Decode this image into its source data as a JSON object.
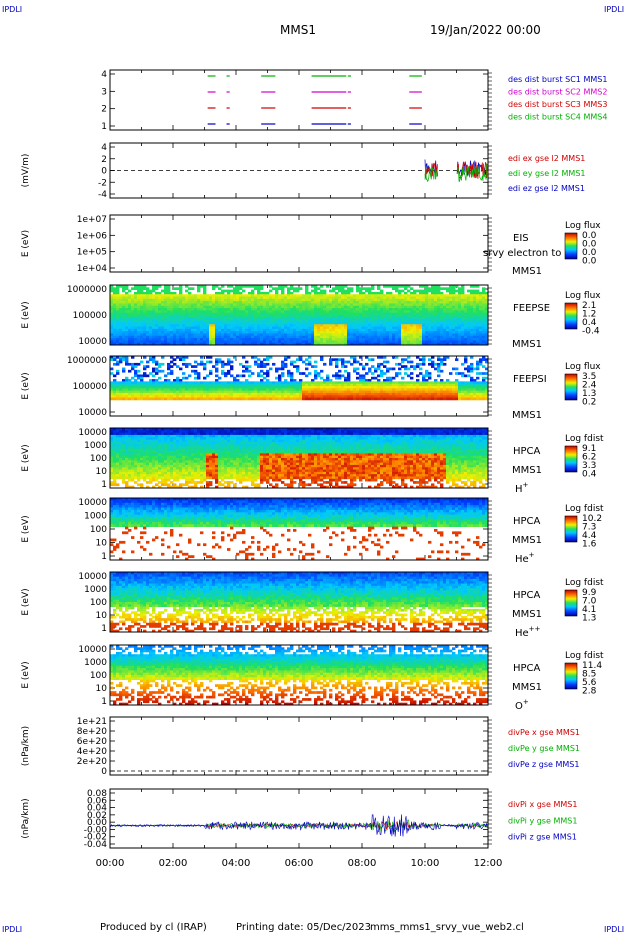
{
  "corner_tag": "IPDLI",
  "header": {
    "spacecraft": "MMS1",
    "date": "19/Jan/2022 00:00"
  },
  "footer": {
    "producer": "Produced by cl (IRAP)",
    "printing_date": "Printing date: 05/Dec/2023",
    "filename": "mms_mms1_srvy_vue_web2.cl"
  },
  "colors": {
    "red": "#d00000",
    "green": "#00b000",
    "blue": "#0000c0",
    "magenta": "#d000d0"
  },
  "chart_data": [
    {
      "type": "scatter",
      "ylim": [
        0.5,
        4.5
      ],
      "yticks": [
        "4",
        "3",
        "2",
        "1"
      ],
      "legend": [
        {
          "text": "des dist burst SC1 MMS1",
          "color": "#0000c0"
        },
        {
          "text": "des dist burst SC2 MMS2",
          "color": "#d000d0"
        },
        {
          "text": "des dist burst SC3 MMS3",
          "color": "#d00000"
        },
        {
          "text": "des dist burst SC4 MMS4",
          "color": "#00b000"
        }
      ]
    },
    {
      "type": "line",
      "ylabel": "(mV/m)",
      "ylim": [
        -4,
        4
      ],
      "yticks": [
        "4",
        "2",
        "0",
        "-2",
        "-4"
      ],
      "legend": [
        {
          "text": "edi ex gse l2 MMS1",
          "color": "#d00000"
        },
        {
          "text": "edi ey gse l2 MMS1",
          "color": "#00b000"
        },
        {
          "text": "edi ez gse l2 MMS1",
          "color": "#0000c0"
        }
      ]
    },
    {
      "type": "heatmap",
      "ylabel": "E (eV)",
      "yticks": [
        "1e+07",
        "1e+06",
        "1e+05",
        "1e+04"
      ],
      "labels": [
        "EIS",
        "MMS1"
      ],
      "overlay": "srvy electron to",
      "cbar_title": "Log flux",
      "cbar_ticks": [
        "0.0",
        "0.0",
        "0.0",
        "0.0"
      ]
    },
    {
      "type": "heatmap",
      "ylabel": "E (eV)",
      "yticks": [
        "1000000",
        "100000",
        "10000"
      ],
      "labels": [
        "FEEPSE",
        "MMS1"
      ],
      "cbar_title": "Log flux",
      "cbar_ticks": [
        "2.1",
        "1.2",
        "0.4",
        "-0.4"
      ]
    },
    {
      "type": "heatmap",
      "ylabel": "E (eV)",
      "yticks": [
        "1000000",
        "100000",
        "10000"
      ],
      "labels": [
        "FEEPSI",
        "MMS1"
      ],
      "cbar_title": "Log flux",
      "cbar_ticks": [
        "3.5",
        "2.4",
        "1.3",
        "0.2"
      ]
    },
    {
      "type": "heatmap",
      "ylabel": "E (eV)",
      "yticks": [
        "10000",
        "1000",
        "100",
        "10",
        "1"
      ],
      "labels": [
        "HPCA",
        "MMS1"
      ],
      "species": "H",
      "species_sup": "+",
      "cbar_title": "Log fdist",
      "cbar_ticks": [
        "9.1",
        "6.2",
        "3.3",
        "0.4"
      ]
    },
    {
      "type": "heatmap",
      "ylabel": "E (eV)",
      "yticks": [
        "10000",
        "1000",
        "100",
        "10",
        "1"
      ],
      "labels": [
        "HPCA",
        "MMS1"
      ],
      "species": "He",
      "species_sup": "+",
      "cbar_title": "Log fdist",
      "cbar_ticks": [
        "10.2",
        "7.3",
        "4.4",
        "1.6"
      ]
    },
    {
      "type": "heatmap",
      "ylabel": "E (eV)",
      "yticks": [
        "10000",
        "1000",
        "100",
        "10",
        "1"
      ],
      "labels": [
        "HPCA",
        "MMS1"
      ],
      "species": "He",
      "species_sup": "++",
      "cbar_title": "Log fdist",
      "cbar_ticks": [
        "9.9",
        "7.0",
        "4.1",
        "1.3"
      ]
    },
    {
      "type": "heatmap",
      "ylabel": "E (eV)",
      "yticks": [
        "10000",
        "1000",
        "100",
        "10",
        "1"
      ],
      "labels": [
        "HPCA",
        "MMS1"
      ],
      "species": "O",
      "species_sup": "+",
      "cbar_title": "Log fdist",
      "cbar_ticks": [
        "11.4",
        "8.5",
        "5.6",
        "2.8"
      ]
    },
    {
      "type": "line",
      "ylabel": "(nPa/km)",
      "ylim": [
        0,
        1e+21
      ],
      "yticks": [
        "1e+21",
        "8e+20",
        "6e+20",
        "4e+20",
        "2e+20",
        "0"
      ],
      "legend": [
        {
          "text": "divPe x gse MMS1",
          "color": "#d00000"
        },
        {
          "text": "divPe y gse MMS1",
          "color": "#00b000"
        },
        {
          "text": "divPe z gse MMS1",
          "color": "#0000c0"
        }
      ]
    },
    {
      "type": "line",
      "ylabel": "(nPa/km)",
      "ylim": [
        -0.04,
        0.08
      ],
      "yticks": [
        "0.08",
        "0.06",
        "0.04",
        "0.02",
        "0.00",
        "-0.00",
        "-0.02",
        "-0.04"
      ],
      "legend": [
        {
          "text": "divPi x gse MMS1",
          "color": "#d00000"
        },
        {
          "text": "divPi y gse MMS1",
          "color": "#00b000"
        },
        {
          "text": "divPi z gse MMS1",
          "color": "#0000c0"
        }
      ]
    }
  ],
  "x_axis": {
    "xlim": [
      "00:00",
      "12:00"
    ],
    "ticks": [
      "00:00",
      "02:00",
      "04:00",
      "06:00",
      "08:00",
      "10:00",
      "12:00"
    ]
  }
}
